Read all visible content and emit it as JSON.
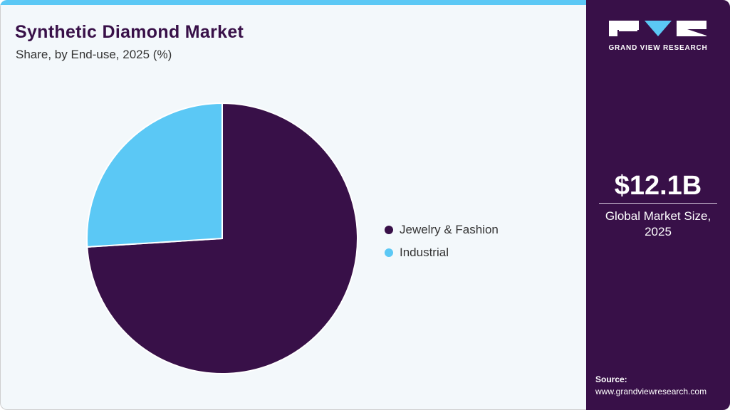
{
  "header": {
    "title": "Synthetic Diamond Market",
    "subtitle": "Share, by End-use, 2025 (%)"
  },
  "legend": [
    {
      "label": "Jewelry & Fashion",
      "color": "#381048"
    },
    {
      "label": "Industrial",
      "color": "#5bc8f5"
    }
  ],
  "sidebar": {
    "logo_text": "GRAND VIEW RESEARCH",
    "market_value": "$12.1B",
    "market_label_line1": "Global Market Size,",
    "market_label_line2": "2025",
    "source_title": "Source:",
    "source_url": "www.grandviewresearch.com"
  },
  "colors": {
    "brand_dark": "#381048",
    "accent_cyan": "#5bc8f5",
    "background": "#f3f8fb"
  },
  "chart_data": {
    "type": "pie",
    "title": "Synthetic Diamond Market",
    "subtitle": "Share, by End-use, 2025 (%)",
    "categories": [
      "Jewelry & Fashion",
      "Industrial"
    ],
    "values": [
      74,
      26
    ],
    "colors": [
      "#381048",
      "#5bc8f5"
    ],
    "legend_position": "right",
    "start_angle": "12 o'clock, Jewelry clockwise"
  }
}
